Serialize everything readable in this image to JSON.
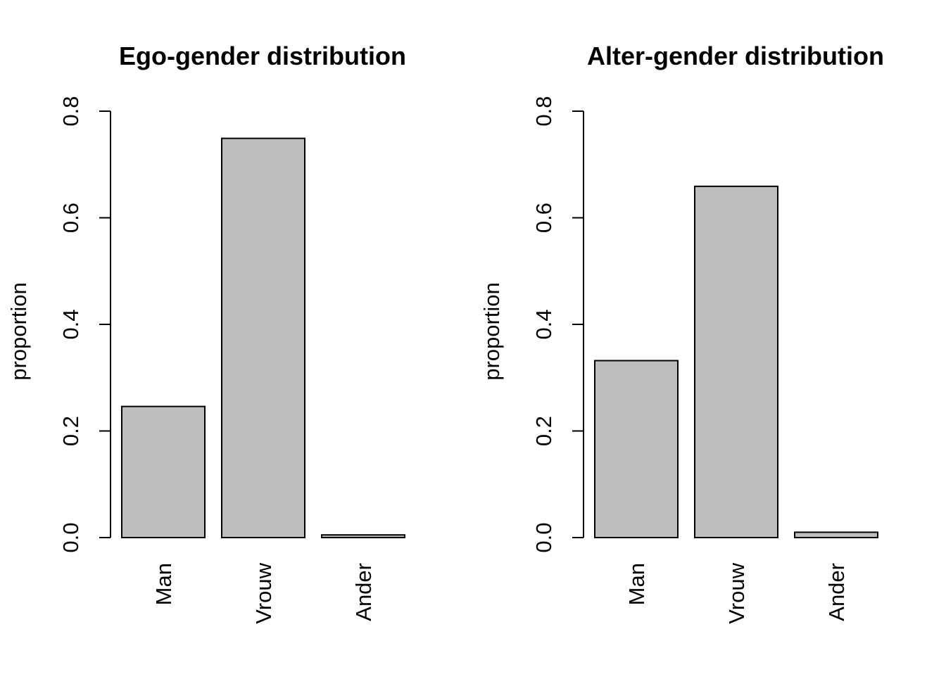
{
  "bar_fill": "#bebebe",
  "bar_stroke": "#000000",
  "chart_data": [
    {
      "type": "bar",
      "title": "Ego-gender distribution",
      "xlabel": "",
      "ylabel": "proportion",
      "categories": [
        "Man",
        "Vrouw",
        "Ander"
      ],
      "values": [
        0.246,
        0.749,
        0.005
      ],
      "ylim": [
        0,
        0.8
      ],
      "yticks": [
        "0.0",
        "0.2",
        "0.4",
        "0.6",
        "0.8"
      ],
      "grid": false
    },
    {
      "type": "bar",
      "title": "Alter-gender distribution",
      "xlabel": "",
      "ylabel": "proportion",
      "categories": [
        "Man",
        "Vrouw",
        "Ander"
      ],
      "values": [
        0.332,
        0.659,
        0.01
      ],
      "ylim": [
        0,
        0.8
      ],
      "yticks": [
        "0.0",
        "0.2",
        "0.4",
        "0.6",
        "0.8"
      ],
      "grid": false
    }
  ]
}
